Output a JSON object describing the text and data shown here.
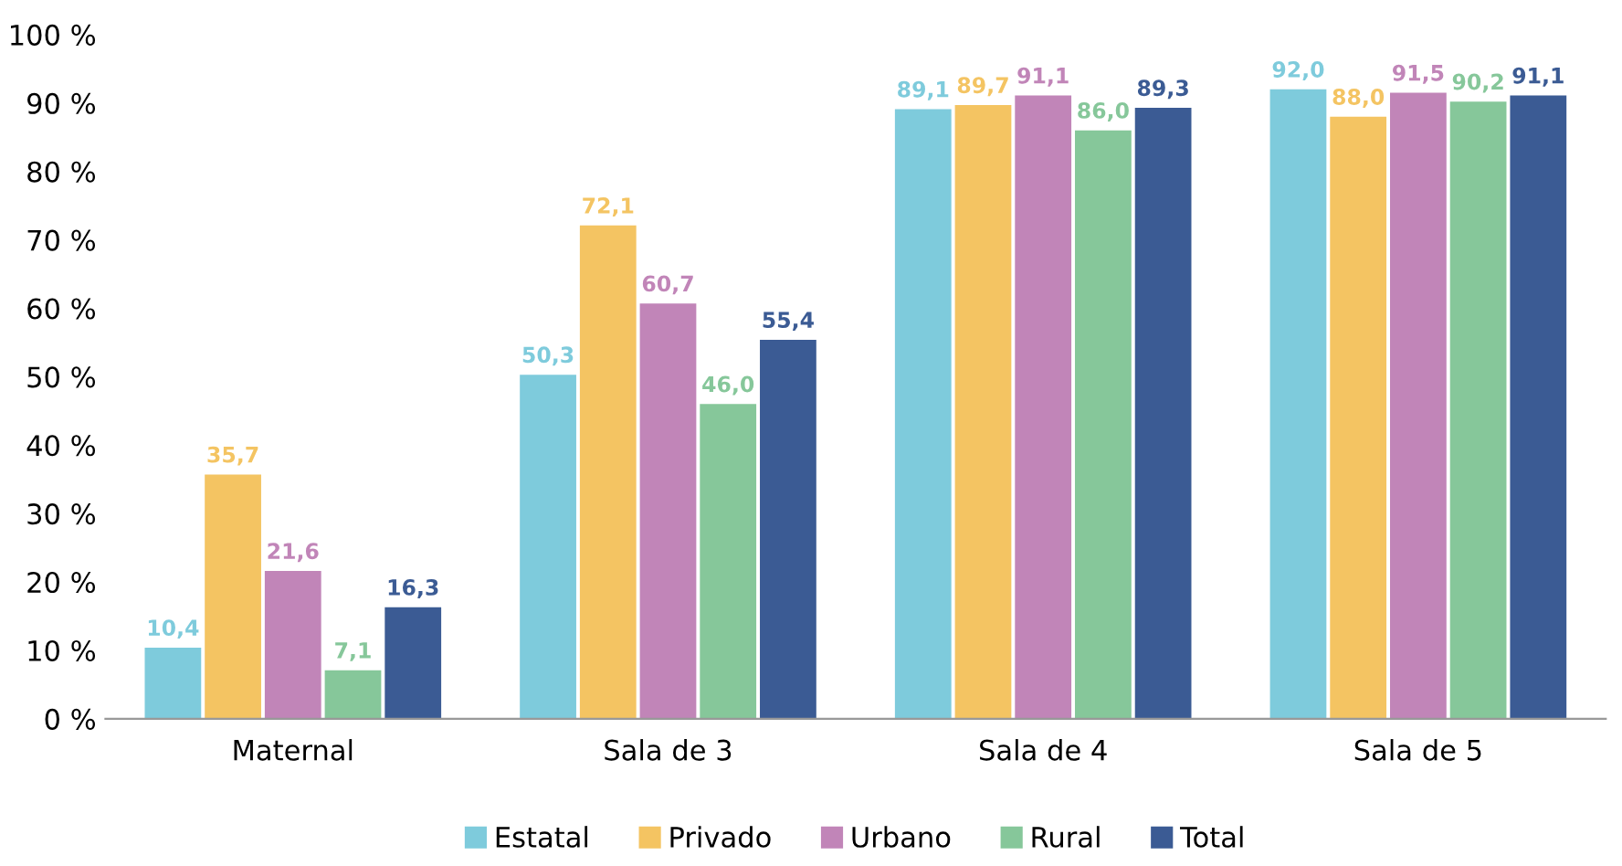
{
  "chart_data": {
    "type": "bar",
    "categories": [
      "Maternal",
      "Sala de 3",
      "Sala de 4",
      "Sala de 5"
    ],
    "series": [
      {
        "name": "Estatal",
        "color": "#7ecbdc",
        "values": [
          10.4,
          50.3,
          89.1,
          92.0
        ],
        "value_labels": [
          "10,4",
          "50,3",
          "89,1",
          "92,0"
        ]
      },
      {
        "name": "Privado",
        "color": "#f4c462",
        "values": [
          35.7,
          72.1,
          89.7,
          88.0
        ],
        "value_labels": [
          "35,7",
          "72,1",
          "89,7",
          "88,0"
        ]
      },
      {
        "name": "Urbano",
        "color": "#c185b8",
        "values": [
          21.6,
          60.7,
          91.1,
          91.5
        ],
        "value_labels": [
          "21,6",
          "60,7",
          "91,1",
          "91,5"
        ]
      },
      {
        "name": "Rural",
        "color": "#86c79a",
        "values": [
          7.1,
          46.0,
          86.0,
          90.2
        ],
        "value_labels": [
          "7,1",
          "46,0",
          "86,0",
          "90,2"
        ]
      },
      {
        "name": "Total",
        "color": "#3b5b94",
        "values": [
          16.3,
          55.4,
          89.3,
          91.1
        ],
        "value_labels": [
          "16,3",
          "55,4",
          "89,3",
          "91,1"
        ]
      }
    ],
    "ylim": [
      0,
      100
    ],
    "yticks": [
      {
        "value": 0,
        "label": "0 %"
      },
      {
        "value": 10,
        "label": "10 %"
      },
      {
        "value": 20,
        "label": "20 %"
      },
      {
        "value": 30,
        "label": "30 %"
      },
      {
        "value": 40,
        "label": "40 %"
      },
      {
        "value": 50,
        "label": "50 %"
      },
      {
        "value": 60,
        "label": "60 %"
      },
      {
        "value": 70,
        "label": "70 %"
      },
      {
        "value": 80,
        "label": "80 %"
      },
      {
        "value": 90,
        "label": "90 %"
      },
      {
        "value": 100,
        "label": "100 %"
      }
    ],
    "grid": false,
    "legend": "bottom"
  }
}
